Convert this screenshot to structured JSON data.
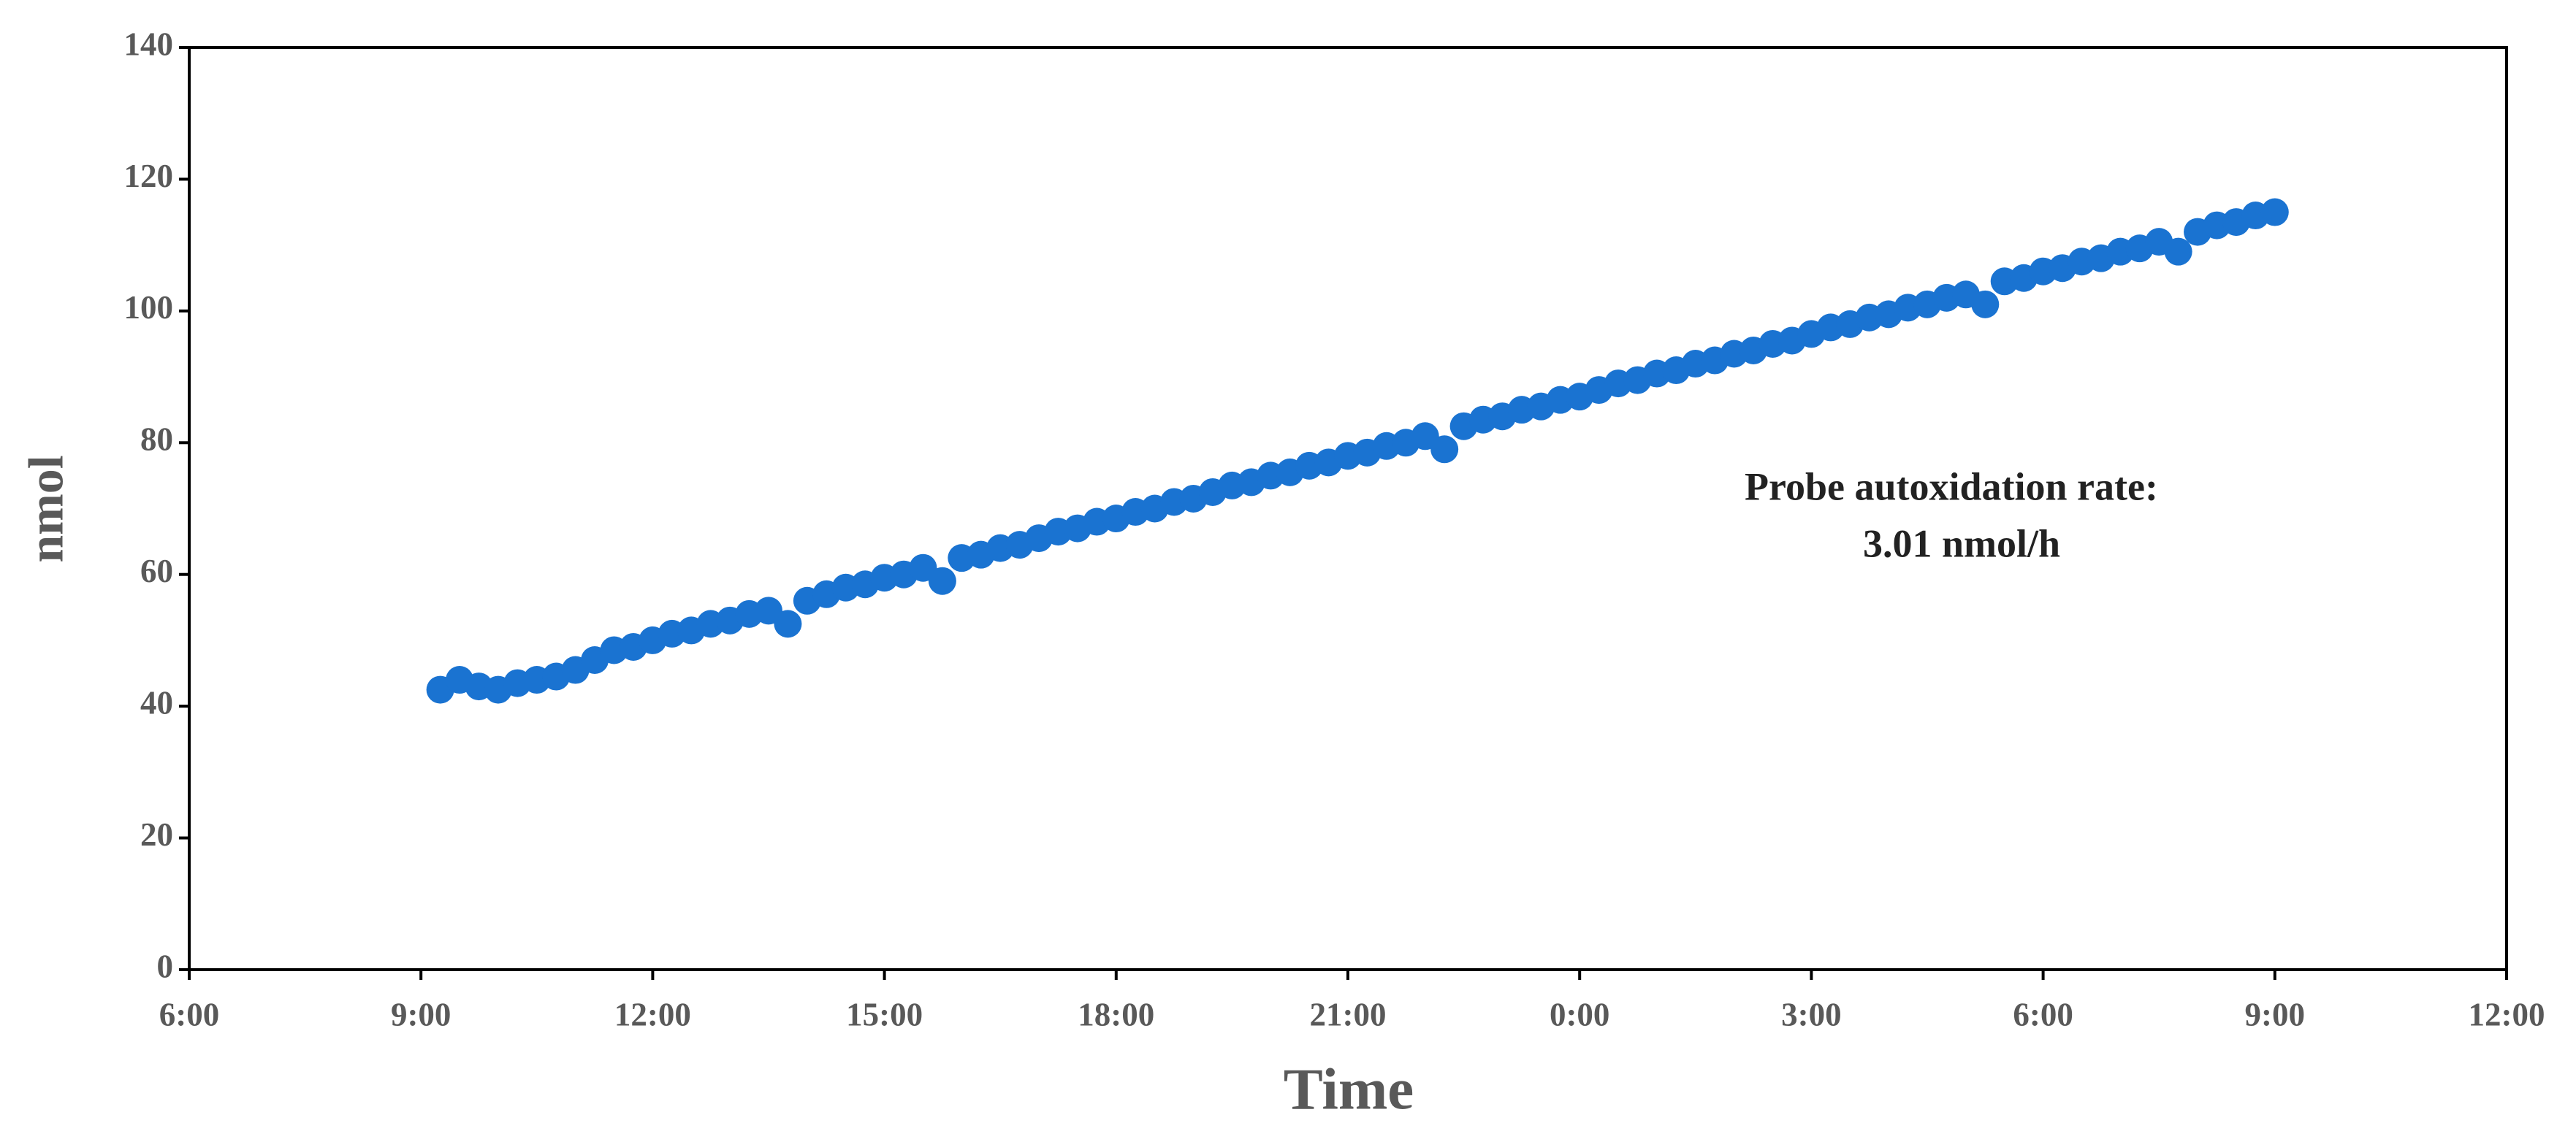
{
  "chart_data": {
    "type": "scatter",
    "x_label": "Time",
    "y_label": "nmol",
    "annotations": [
      "Probe autoxidation rate:",
      "3.01 nmol/h"
    ],
    "color": "#1a73d1",
    "xlim": [
      6,
      36
    ],
    "xticks": [
      {
        "value": 6,
        "label": "6:00"
      },
      {
        "value": 9,
        "label": "9:00"
      },
      {
        "value": 12,
        "label": "12:00"
      },
      {
        "value": 15,
        "label": "15:00"
      },
      {
        "value": 18,
        "label": "18:00"
      },
      {
        "value": 21,
        "label": "21:00"
      },
      {
        "value": 24,
        "label": "0:00"
      },
      {
        "value": 27,
        "label": "3:00"
      },
      {
        "value": 30,
        "label": "6:00"
      },
      {
        "value": 33,
        "label": "9:00"
      },
      {
        "value": 36,
        "label": "12:00"
      }
    ],
    "ylim": [
      0,
      140
    ],
    "yticks": [
      0,
      20,
      40,
      60,
      80,
      100,
      120,
      140
    ],
    "x": [
      9.25,
      9.5,
      9.75,
      10,
      10.25,
      10.5,
      10.75,
      11,
      11.25,
      11.5,
      11.75,
      12,
      12.25,
      12.5,
      12.75,
      13,
      13.25,
      13.5,
      13.75,
      14,
      14.25,
      14.5,
      14.75,
      15,
      15.25,
      15.5,
      15.75,
      16,
      16.25,
      16.5,
      16.75,
      17,
      17.25,
      17.5,
      17.75,
      18,
      18.25,
      18.5,
      18.75,
      19,
      19.25,
      19.5,
      19.75,
      20,
      20.25,
      20.5,
      20.75,
      21,
      21.25,
      21.5,
      21.75,
      22,
      22.25,
      22.5,
      22.75,
      23,
      23.25,
      23.5,
      23.75,
      24,
      24.25,
      24.5,
      24.75,
      25,
      25.25,
      25.5,
      25.75,
      26,
      26.25,
      26.5,
      26.75,
      27,
      27.25,
      27.5,
      27.75,
      28,
      28.25,
      28.5,
      28.75,
      29,
      29.25,
      29.5,
      29.75,
      30,
      30.25,
      30.5,
      30.75,
      31,
      31.25,
      31.5,
      31.75,
      32,
      32.25,
      32.5,
      32.75,
      33
    ],
    "values": [
      42.5,
      44,
      43,
      42.5,
      43.5,
      44,
      44.5,
      45.5,
      47,
      48.5,
      49,
      50,
      51,
      51.5,
      52.5,
      53,
      54,
      54.5,
      52.5,
      56,
      57,
      58,
      58.5,
      59.5,
      60,
      61,
      59,
      62.5,
      63,
      64,
      64.5,
      65.5,
      66.5,
      67,
      68,
      68.5,
      69.5,
      70,
      71,
      71.5,
      72.5,
      73.5,
      74,
      75,
      75.5,
      76.5,
      77,
      78,
      78.5,
      79.5,
      80,
      81,
      79,
      82.5,
      83.5,
      84,
      85,
      85.5,
      86.5,
      87,
      88,
      89,
      89.5,
      90.5,
      91,
      92,
      92.5,
      93.5,
      94,
      95,
      95.5,
      96.5,
      97.5,
      98,
      99,
      99.5,
      100.5,
      101,
      102,
      102.5,
      101,
      104.5,
      105,
      106,
      106.5,
      107.5,
      108,
      109,
      109.5,
      110.5,
      109,
      112,
      113,
      113.5,
      114.5,
      115
    ]
  }
}
